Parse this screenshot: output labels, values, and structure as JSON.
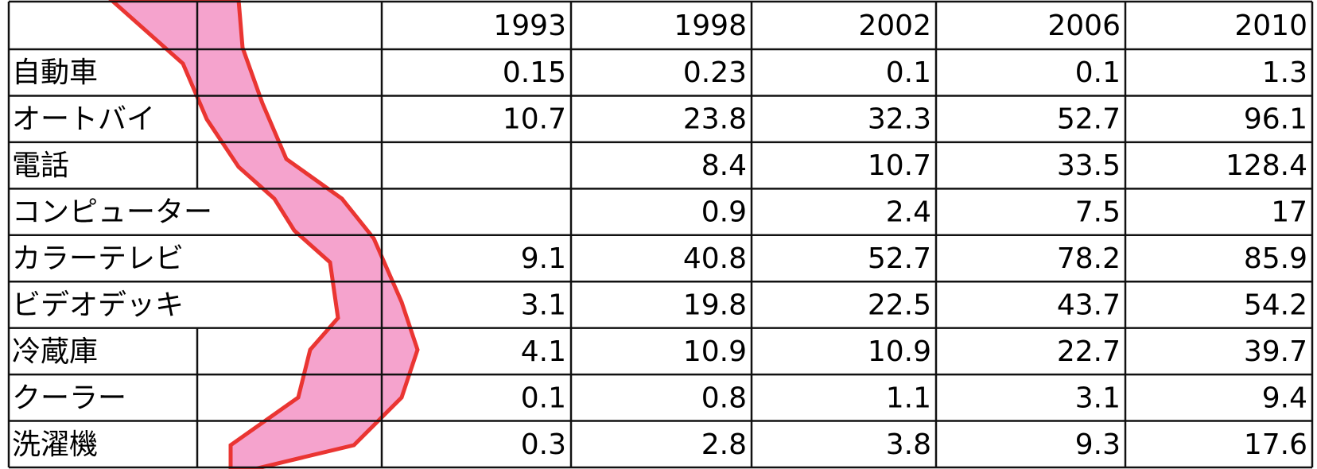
{
  "table": {
    "header": [
      "1993",
      "1998",
      "2002",
      "2006",
      "2010"
    ],
    "rows": [
      {
        "label": "自動車",
        "values": [
          0.15,
          0.23,
          0.1,
          0.1,
          1.3
        ]
      },
      {
        "label": "オートバイ",
        "values": [
          10.7,
          23.8,
          32.3,
          52.7,
          96.1
        ]
      },
      {
        "label": "電話",
        "values": [
          null,
          8.4,
          10.7,
          33.5,
          128.4
        ]
      },
      {
        "label": "コンピューター",
        "values": [
          null,
          0.9,
          2.4,
          7.5,
          17
        ]
      },
      {
        "label": "カラーテレビ",
        "values": [
          9.1,
          40.8,
          52.7,
          78.2,
          85.9
        ]
      },
      {
        "label": "ビデオデッキ",
        "values": [
          3.1,
          19.8,
          22.5,
          43.7,
          54.2
        ]
      },
      {
        "label": "冷蔵庫",
        "values": [
          4.1,
          10.9,
          10.9,
          22.7,
          39.7
        ]
      },
      {
        "label": "クーラー",
        "values": [
          0.1,
          0.8,
          1.1,
          3.1,
          9.4
        ]
      },
      {
        "label": "洗濯機",
        "values": [
          0.3,
          2.8,
          3.8,
          9.3,
          17.6
        ]
      }
    ]
  }
}
